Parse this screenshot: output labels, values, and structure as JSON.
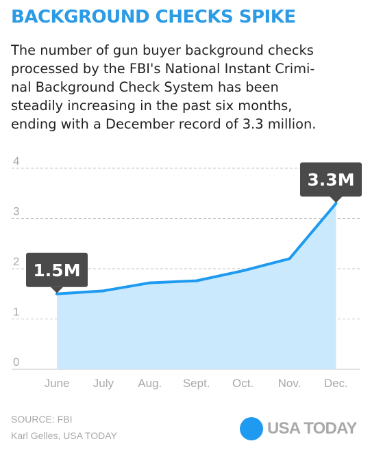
{
  "title": "BACKGROUND CHECKS SPIKE",
  "description_lines": [
    "The number of gun buyer background checks",
    "processed by the FBI's National Instant Crimi-",
    "nal Background Check System has been",
    "steadily increasing in the past six months,",
    "ending with a December record of 3.3 million."
  ],
  "chart_data": {
    "type": "area",
    "categories": [
      "June",
      "July",
      "Aug.",
      "Sept.",
      "Oct.",
      "Nov.",
      "Dec."
    ],
    "values": [
      1.5,
      1.56,
      1.72,
      1.76,
      1.96,
      2.2,
      3.3
    ],
    "ylim": [
      0,
      4
    ],
    "yticks": [
      "0",
      "1",
      "2",
      "3",
      "4"
    ],
    "annotations": [
      {
        "index": 0,
        "label": "1.5M"
      },
      {
        "index": 6,
        "label": "3.3M"
      }
    ],
    "grid": true,
    "colors": {
      "line": "#1e9bf0",
      "fill": "#cbe9fc",
      "grid": "#c4c4c4",
      "tick_text": "#a9a9a9",
      "callout": "#4a4a4a"
    }
  },
  "footer": {
    "source": "SOURCE: FBI",
    "credit": "Karl Gelles, USA TODAY",
    "logo_text": "USA TODAY"
  },
  "colors": {
    "title": "#2b9be5",
    "logo_dot": "#1e9bf0"
  }
}
